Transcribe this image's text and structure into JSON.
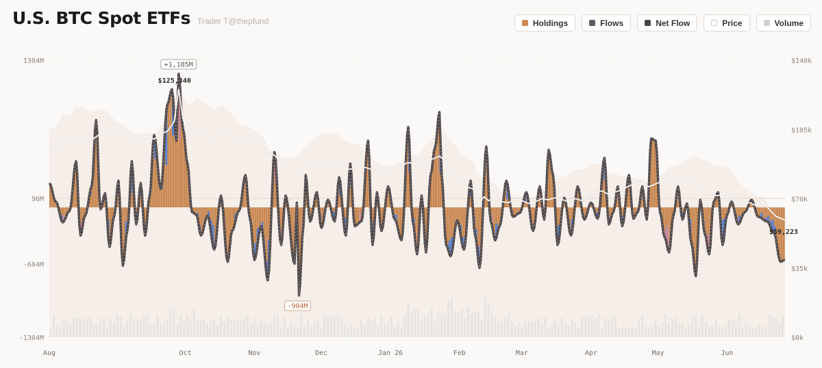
{
  "header": {
    "title": "U.S. BTC Spot ETFs",
    "subtitle": "Trader T@thepfund"
  },
  "legend": [
    {
      "label": "Holdings",
      "color": "#c98a55",
      "icon": "holdings-swatch"
    },
    {
      "label": "Flows",
      "color": "#5b5a66",
      "icon": "flows-swatch"
    },
    {
      "label": "Net Flow",
      "color": "#4a4447",
      "icon": "net-flow-swatch"
    },
    {
      "label": "Price",
      "color": "#ffffff",
      "icon": "price-swatch"
    },
    {
      "label": "Volume",
      "color": "#d3d0cd",
      "icon": "volume-swatch"
    }
  ],
  "colors": {
    "holdings": "#c98a55",
    "flows_blue": "#5b82cc",
    "flows_pink": "#c48c9a",
    "net_flow": "#4a4447",
    "price": "#ffffff",
    "volume": "#e7e4e1",
    "area": "#efe1d5"
  },
  "chart_data": {
    "type": "bar",
    "title": "U.S. BTC Spot ETFs",
    "y_left": {
      "min": -1304,
      "max": 1304,
      "unit": "M",
      "ticks": [
        "1304M",
        "96M",
        "-604M",
        "-1304M"
      ],
      "tick_values": [
        1304,
        96,
        -604,
        -1304
      ]
    },
    "y_right": {
      "min": 0,
      "max": 140000,
      "ticks": [
        "$140k",
        "$105k",
        "$70k",
        "$35k",
        "$0k"
      ],
      "tick_values": [
        140000,
        105000,
        70000,
        35000,
        0
      ]
    },
    "x_ticks": [
      "Aug",
      "Oct",
      "Nov",
      "Dec",
      "Jan 26",
      "Feb",
      "Mar",
      "Apr",
      "May",
      "Jun"
    ],
    "x_tick_days": [
      0,
      61,
      92,
      122,
      153,
      184,
      212,
      243,
      273,
      304
    ],
    "days": 330,
    "net_flow_keypoints": [
      [
        0,
        230
      ],
      [
        3,
        60
      ],
      [
        6,
        -160
      ],
      [
        9,
        -40
      ],
      [
        12,
        420
      ],
      [
        14,
        -300
      ],
      [
        16,
        -90
      ],
      [
        19,
        200
      ],
      [
        21,
        780
      ],
      [
        23,
        -20
      ],
      [
        25,
        140
      ],
      [
        27,
        -420
      ],
      [
        29,
        -100
      ],
      [
        31,
        250
      ],
      [
        33,
        -620
      ],
      [
        35,
        -250
      ],
      [
        37,
        420
      ],
      [
        39,
        -180
      ],
      [
        41,
        230
      ],
      [
        43,
        -300
      ],
      [
        45,
        120
      ],
      [
        47,
        650
      ],
      [
        50,
        180
      ],
      [
        53,
        920
      ],
      [
        55,
        1050
      ],
      [
        57,
        600
      ],
      [
        58,
        1185
      ],
      [
        60,
        700
      ],
      [
        62,
        400
      ],
      [
        64,
        -50
      ],
      [
        66,
        -80
      ],
      [
        68,
        -300
      ],
      [
        71,
        -90
      ],
      [
        74,
        -450
      ],
      [
        77,
        120
      ],
      [
        80,
        -580
      ],
      [
        82,
        -250
      ],
      [
        85,
        -40
      ],
      [
        88,
        300
      ],
      [
        90,
        -120
      ],
      [
        92,
        -560
      ],
      [
        95,
        -200
      ],
      [
        98,
        -760
      ],
      [
        101,
        500
      ],
      [
        104,
        -400
      ],
      [
        106,
        120
      ],
      [
        110,
        -600
      ],
      [
        111,
        50
      ],
      [
        112,
        -904
      ],
      [
        114,
        -200
      ],
      [
        115,
        300
      ],
      [
        117,
        -150
      ],
      [
        120,
        150
      ],
      [
        122,
        -220
      ],
      [
        125,
        80
      ],
      [
        128,
        -150
      ],
      [
        130,
        280
      ],
      [
        133,
        -300
      ],
      [
        135,
        400
      ],
      [
        137,
        -200
      ],
      [
        140,
        -150
      ],
      [
        143,
        600
      ],
      [
        145,
        -400
      ],
      [
        147,
        150
      ],
      [
        149,
        -250
      ],
      [
        152,
        200
      ],
      [
        155,
        -130
      ],
      [
        158,
        -350
      ],
      [
        161,
        720
      ],
      [
        163,
        -150
      ],
      [
        165,
        -500
      ],
      [
        167,
        120
      ],
      [
        169,
        -480
      ],
      [
        171,
        300
      ],
      [
        173,
        540
      ],
      [
        175,
        850
      ],
      [
        176,
        300
      ],
      [
        178,
        -400
      ],
      [
        180,
        -520
      ],
      [
        183,
        -140
      ],
      [
        186,
        -450
      ],
      [
        189,
        250
      ],
      [
        191,
        -300
      ],
      [
        193,
        -640
      ],
      [
        196,
        550
      ],
      [
        198,
        -150
      ],
      [
        200,
        -350
      ],
      [
        202,
        -200
      ],
      [
        205,
        250
      ],
      [
        208,
        -100
      ],
      [
        211,
        -60
      ],
      [
        214,
        150
      ],
      [
        217,
        -250
      ],
      [
        220,
        200
      ],
      [
        222,
        -130
      ],
      [
        224,
        520
      ],
      [
        226,
        300
      ],
      [
        228,
        -400
      ],
      [
        231,
        100
      ],
      [
        234,
        -300
      ],
      [
        237,
        200
      ],
      [
        240,
        -130
      ],
      [
        243,
        50
      ],
      [
        246,
        -120
      ],
      [
        249,
        450
      ],
      [
        251,
        -180
      ],
      [
        253,
        -50
      ],
      [
        255,
        200
      ],
      [
        257,
        -200
      ],
      [
        260,
        300
      ],
      [
        262,
        -120
      ],
      [
        264,
        -50
      ],
      [
        266,
        200
      ],
      [
        268,
        -130
      ],
      [
        270,
        620
      ],
      [
        272,
        600
      ],
      [
        274,
        -60
      ],
      [
        276,
        -320
      ],
      [
        278,
        -480
      ],
      [
        280,
        -80
      ],
      [
        282,
        200
      ],
      [
        284,
        -130
      ],
      [
        286,
        40
      ],
      [
        288,
        -380
      ],
      [
        290,
        -720
      ],
      [
        292,
        80
      ],
      [
        294,
        -280
      ],
      [
        296,
        -500
      ],
      [
        298,
        60
      ],
      [
        300,
        150
      ],
      [
        302,
        -400
      ],
      [
        304,
        -80
      ],
      [
        306,
        60
      ],
      [
        309,
        -180
      ],
      [
        312,
        -50
      ],
      [
        315,
        80
      ],
      [
        318,
        -100
      ],
      [
        322,
        -150
      ],
      [
        325,
        -270
      ],
      [
        328,
        -580
      ],
      [
        330,
        -560
      ]
    ],
    "price_keypoints": [
      [
        0,
        97000
      ],
      [
        3,
        95000
      ],
      [
        6,
        100000
      ],
      [
        9,
        97000
      ],
      [
        12,
        101000
      ],
      [
        15,
        100500
      ],
      [
        18,
        99000
      ],
      [
        22,
        102000
      ],
      [
        26,
        104000
      ],
      [
        30,
        101500
      ],
      [
        33,
        103000
      ],
      [
        36,
        101000
      ],
      [
        40,
        100500
      ],
      [
        44,
        101800
      ],
      [
        47,
        100000
      ],
      [
        50,
        103000
      ],
      [
        53,
        104000
      ],
      [
        56,
        109000
      ],
      [
        58,
        125340
      ],
      [
        60,
        110000
      ],
      [
        63,
        104000
      ],
      [
        66,
        106000
      ],
      [
        70,
        103000
      ],
      [
        74,
        100000
      ],
      [
        78,
        104000
      ],
      [
        82,
        102000
      ],
      [
        86,
        99500
      ],
      [
        89,
        101500
      ],
      [
        92,
        100500
      ],
      [
        95,
        101000
      ],
      [
        98,
        93000
      ],
      [
        101,
        92000
      ],
      [
        104,
        88000
      ],
      [
        108,
        86000
      ],
      [
        111,
        83500
      ],
      [
        114,
        86000
      ],
      [
        117,
        87000
      ],
      [
        120,
        87500
      ],
      [
        123,
        88500
      ],
      [
        126,
        87200
      ],
      [
        129,
        88000
      ],
      [
        132,
        85500
      ],
      [
        135,
        84800
      ],
      [
        138,
        86500
      ],
      [
        141,
        86000
      ],
      [
        144,
        85000
      ],
      [
        147,
        83500
      ],
      [
        150,
        84000
      ],
      [
        153,
        84500
      ],
      [
        156,
        86500
      ],
      [
        158,
        86000
      ],
      [
        160,
        88000
      ],
      [
        163,
        88200
      ],
      [
        166,
        86000
      ],
      [
        169,
        89500
      ],
      [
        172,
        90000
      ],
      [
        175,
        91500
      ],
      [
        178,
        89000
      ],
      [
        181,
        83000
      ],
      [
        184,
        78000
      ],
      [
        187,
        76000
      ],
      [
        190,
        75000
      ],
      [
        193,
        68000
      ],
      [
        195,
        71000
      ],
      [
        197,
        69000
      ],
      [
        200,
        70500
      ],
      [
        203,
        68500
      ],
      [
        206,
        68000
      ],
      [
        209,
        70000
      ],
      [
        212,
        69000
      ],
      [
        215,
        67500
      ],
      [
        218,
        68500
      ],
      [
        221,
        70000
      ],
      [
        224,
        69500
      ],
      [
        227,
        70500
      ],
      [
        230,
        69500
      ],
      [
        233,
        68500
      ],
      [
        236,
        70000
      ],
      [
        239,
        69000
      ],
      [
        242,
        71500
      ],
      [
        245,
        73000
      ],
      [
        248,
        74000
      ],
      [
        251,
        72000
      ],
      [
        254,
        73500
      ],
      [
        257,
        74500
      ],
      [
        260,
        76500
      ],
      [
        263,
        77500
      ],
      [
        266,
        78000
      ],
      [
        269,
        76000
      ],
      [
        272,
        77500
      ],
      [
        275,
        79000
      ],
      [
        278,
        81000
      ],
      [
        281,
        79500
      ],
      [
        284,
        78500
      ],
      [
        287,
        79000
      ],
      [
        290,
        78000
      ],
      [
        293,
        75000
      ],
      [
        296,
        73000
      ],
      [
        299,
        71500
      ],
      [
        302,
        72000
      ],
      [
        305,
        73000
      ],
      [
        308,
        70000
      ],
      [
        311,
        67500
      ],
      [
        314,
        68000
      ],
      [
        317,
        66500
      ],
      [
        320,
        68500
      ],
      [
        323,
        64500
      ],
      [
        326,
        61000
      ],
      [
        330,
        59223
      ]
    ],
    "annotations": [
      {
        "label": "+1,185M",
        "kind": "max_flow",
        "day": 58,
        "value": 1185
      },
      {
        "label": "$125,340",
        "kind": "max_price",
        "day": 58,
        "value": 125340
      },
      {
        "label": "-904M",
        "kind": "min_flow",
        "day": 112,
        "value": -904
      },
      {
        "label": "$59,223",
        "kind": "last_price",
        "day": 330,
        "value": 59223
      }
    ],
    "grid": true,
    "legend_position": "top-right"
  }
}
